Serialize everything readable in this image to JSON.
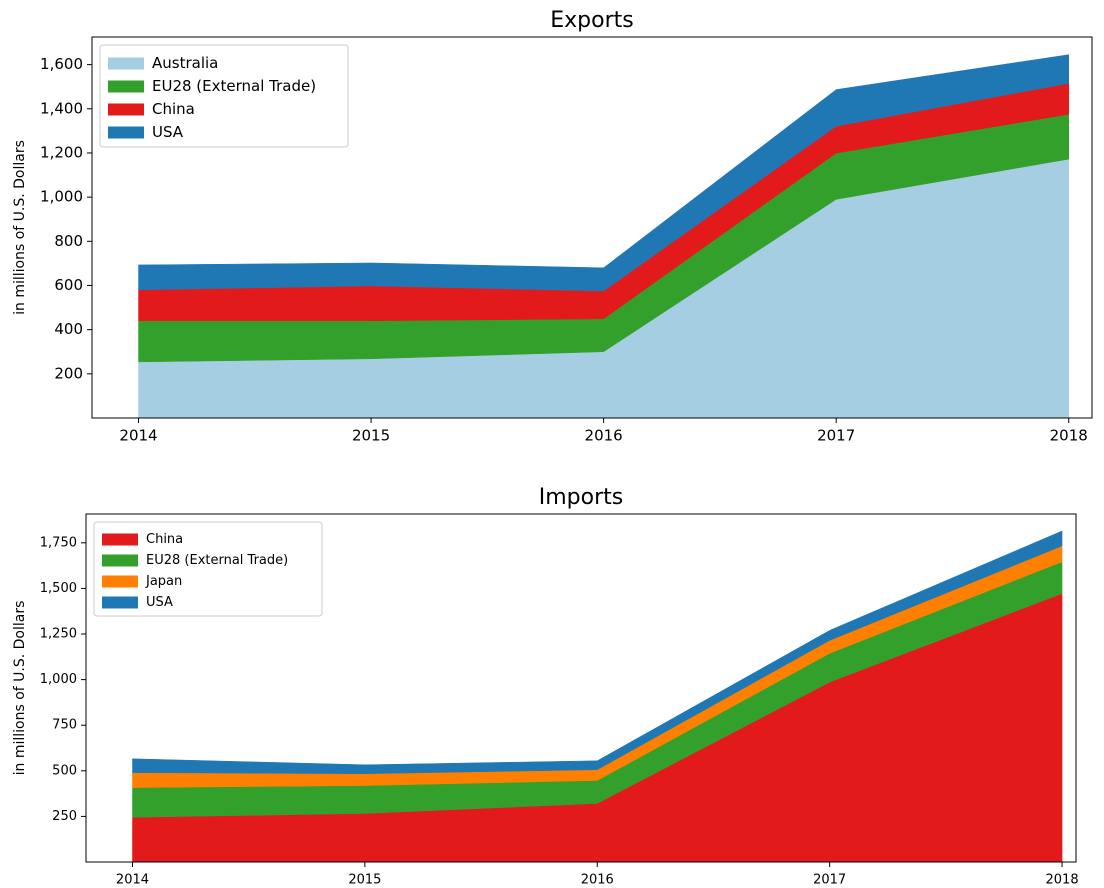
{
  "chart_data": [
    {
      "type": "stackedarea",
      "title": "Exports",
      "ylabel": "in millions of U.S. Dollars",
      "x": [
        2014,
        2015,
        2016,
        2017,
        2018
      ],
      "xlim": [
        2013.8,
        2018.1
      ],
      "xticks": [
        2014,
        2015,
        2016,
        2017,
        2018
      ],
      "ylim": [
        0,
        1725
      ],
      "yticks": [
        200,
        400,
        600,
        800,
        {
          "value": 1000,
          "label": "1,000"
        },
        {
          "value": 1200,
          "label": "1,200"
        },
        {
          "value": 1400,
          "label": "1,400"
        },
        {
          "value": 1600,
          "label": "1,600"
        }
      ],
      "legend": "upper left",
      "series": [
        {
          "name": "Australia",
          "color": "#a6cee3",
          "values": [
            254,
            268,
            300,
            990,
            1172
          ]
        },
        {
          "name": "EU28 (External Trade)",
          "color": "#33a02c",
          "values": [
            186,
            172,
            149,
            209,
            203
          ]
        },
        {
          "name": "China",
          "color": "#e31a1c",
          "values": [
            140,
            158,
            126,
            122,
            140
          ]
        },
        {
          "name": "USA",
          "color": "#1f78b4",
          "values": [
            113,
            104,
            105,
            166,
            130
          ]
        }
      ]
    },
    {
      "type": "stackedarea",
      "title": "Imports",
      "ylabel": "in millions of U.S. Dollars",
      "x": [
        2014,
        2015,
        2016,
        2017,
        2018
      ],
      "xlim": [
        2013.8,
        2018.06
      ],
      "xticks": [
        2014,
        2015,
        2016,
        2017,
        2018
      ],
      "ylim": [
        0,
        1908
      ],
      "yticks": [
        250,
        500,
        750,
        {
          "value": 1000,
          "label": "1,000"
        },
        {
          "value": 1250,
          "label": "1,250"
        },
        {
          "value": 1500,
          "label": "1,500"
        },
        {
          "value": 1750,
          "label": "1,750"
        }
      ],
      "legend": "upper left",
      "series": [
        {
          "name": "China",
          "color": "#e31a1c",
          "values": [
            245,
            266,
            321,
            986,
            1472
          ]
        },
        {
          "name": "EU28 (External Trade)",
          "color": "#33a02c",
          "values": [
            163,
            153,
            126,
            158,
            174
          ]
        },
        {
          "name": "Japan",
          "color": "#ff7f00",
          "values": [
            82,
            65,
            59,
            71,
            87
          ]
        },
        {
          "name": "USA",
          "color": "#1f78b4",
          "values": [
            76,
            49,
            49,
            55,
            82
          ]
        }
      ]
    }
  ]
}
